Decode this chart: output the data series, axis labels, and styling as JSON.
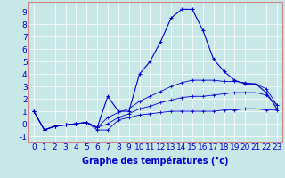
{
  "x": [
    0,
    1,
    2,
    3,
    4,
    5,
    6,
    7,
    8,
    9,
    10,
    11,
    12,
    13,
    14,
    15,
    16,
    17,
    18,
    19,
    20,
    21,
    22,
    23
  ],
  "line_main": [
    1,
    -0.5,
    -0.2,
    -0.1,
    0.0,
    0.1,
    -0.3,
    2.2,
    1.0,
    1.0,
    4.0,
    5.0,
    6.6,
    8.5,
    9.2,
    9.2,
    7.5,
    5.2,
    4.2,
    3.5,
    3.2,
    3.2,
    2.5,
    1.2
  ],
  "line_min": [
    1,
    -0.5,
    -0.2,
    -0.1,
    0.0,
    0.1,
    -0.5,
    -0.5,
    0.3,
    0.5,
    0.7,
    0.8,
    0.9,
    1.0,
    1.0,
    1.0,
    1.0,
    1.0,
    1.1,
    1.1,
    1.2,
    1.2,
    1.1,
    1.1
  ],
  "line_max": [
    1,
    -0.5,
    -0.2,
    -0.1,
    0.0,
    0.1,
    -0.3,
    0.5,
    0.9,
    1.2,
    1.8,
    2.2,
    2.6,
    3.0,
    3.3,
    3.5,
    3.5,
    3.5,
    3.4,
    3.4,
    3.3,
    3.2,
    2.8,
    1.5
  ],
  "line_avg": [
    1,
    -0.5,
    -0.2,
    -0.1,
    0.0,
    0.1,
    -0.3,
    0.0,
    0.5,
    0.8,
    1.2,
    1.4,
    1.7,
    1.9,
    2.1,
    2.2,
    2.2,
    2.3,
    2.4,
    2.5,
    2.5,
    2.5,
    2.3,
    1.5
  ],
  "color_main": "#0000cc",
  "color_others": "#0000cc",
  "bg_color": "#c8e8e8",
  "grid_color": "#aacccc",
  "xlabel": "Graphe des températures (°c)",
  "ylabel_ticks": [
    -1,
    0,
    1,
    2,
    3,
    4,
    5,
    6,
    7,
    8,
    9
  ],
  "ylim": [
    -1.5,
    9.8
  ],
  "xlim": [
    -0.5,
    23.5
  ],
  "title_color": "#0000cc",
  "xlabel_fontsize": 7,
  "tick_fontsize": 6.5
}
